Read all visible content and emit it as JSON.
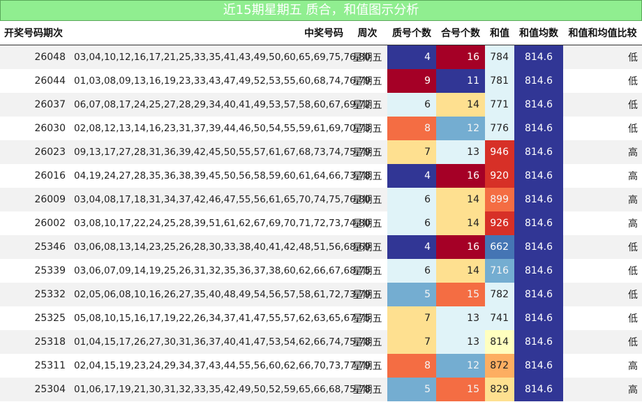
{
  "title": "近15期星期五 质合，和值图示分析",
  "headers": {
    "issue": "开奖号码期次",
    "numbers": "中奖号码",
    "weekday": "周次",
    "prime": "质号个数",
    "composite": "合号个数",
    "sum": "和值",
    "mean": "和值均数",
    "compare": "和值和均值比较"
  },
  "rows": [
    {
      "issue": "26048",
      "numbers": "03,04,10,12,16,17,21,25,33,35,41,43,49,50,60,65,69,75,76,80",
      "weekday": "星期五",
      "prime": "4",
      "prime_color": "#313695",
      "composite": "16",
      "composite_color": "#a50026",
      "sum": "784",
      "sum_color": "#e0f3f8",
      "mean": "814.6",
      "compare": "低"
    },
    {
      "issue": "26044",
      "numbers": "01,03,08,09,13,16,19,23,33,43,47,49,52,53,55,60,68,74,76,79",
      "weekday": "星期五",
      "prime": "9",
      "prime_color": "#a50026",
      "composite": "11",
      "composite_color": "#313695",
      "sum": "781",
      "sum_color": "#e0f3f8",
      "mean": "814.6",
      "compare": "低"
    },
    {
      "issue": "26037",
      "numbers": "06,07,08,17,24,25,27,28,29,34,40,41,49,53,57,58,60,67,69,72",
      "weekday": "星期五",
      "prime": "6",
      "prime_color": "#e0f3f8",
      "composite": "14",
      "composite_color": "#fee090",
      "sum": "771",
      "sum_color": "#e0f3f8",
      "mean": "814.6",
      "compare": "低"
    },
    {
      "issue": "26030",
      "numbers": "02,08,12,13,14,16,23,31,37,39,44,46,50,54,55,59,61,69,70,73",
      "weekday": "星期五",
      "prime": "8",
      "prime_color": "#f46d43",
      "composite": "12",
      "composite_color": "#74add1",
      "sum": "776",
      "sum_color": "#e0f3f8",
      "mean": "814.6",
      "compare": "低"
    },
    {
      "issue": "26023",
      "numbers": "09,13,17,27,28,31,36,39,42,45,50,55,57,61,67,68,73,74,75,79",
      "weekday": "星期五",
      "prime": "7",
      "prime_color": "#fee090",
      "composite": "13",
      "composite_color": "#e0f3f8",
      "sum": "946",
      "sum_color": "#d73027",
      "mean": "814.6",
      "compare": "高"
    },
    {
      "issue": "26016",
      "numbers": "04,19,24,27,28,35,36,38,39,45,50,56,58,59,60,61,64,66,73,78",
      "weekday": "星期五",
      "prime": "4",
      "prime_color": "#313695",
      "composite": "16",
      "composite_color": "#a50026",
      "sum": "920",
      "sum_color": "#d73027",
      "mean": "814.6",
      "compare": "高"
    },
    {
      "issue": "26009",
      "numbers": "03,04,08,17,18,31,34,37,42,46,47,55,56,61,65,70,74,75,76,80",
      "weekday": "星期五",
      "prime": "6",
      "prime_color": "#e0f3f8",
      "composite": "14",
      "composite_color": "#fee090",
      "sum": "899",
      "sum_color": "#f46d43",
      "mean": "814.6",
      "compare": "高"
    },
    {
      "issue": "26002",
      "numbers": "03,08,10,17,22,24,25,28,39,51,61,62,67,69,70,71,72,73,74,80",
      "weekday": "星期五",
      "prime": "6",
      "prime_color": "#e0f3f8",
      "composite": "14",
      "composite_color": "#fee090",
      "sum": "926",
      "sum_color": "#d73027",
      "mean": "814.6",
      "compare": "高"
    },
    {
      "issue": "25346",
      "numbers": "03,06,08,13,14,23,25,26,28,30,33,38,40,41,42,48,51,56,68,69",
      "weekday": "星期五",
      "prime": "4",
      "prime_color": "#313695",
      "composite": "16",
      "composite_color": "#a50026",
      "sum": "662",
      "sum_color": "#4575b4",
      "mean": "814.6",
      "compare": "低"
    },
    {
      "issue": "25339",
      "numbers": "03,06,07,09,14,19,25,26,31,32,35,36,37,38,60,62,66,67,68,75",
      "weekday": "星期五",
      "prime": "6",
      "prime_color": "#e0f3f8",
      "composite": "14",
      "composite_color": "#fee090",
      "sum": "716",
      "sum_color": "#74add1",
      "mean": "814.6",
      "compare": "低"
    },
    {
      "issue": "25332",
      "numbers": "02,05,06,08,10,16,26,27,35,40,48,49,54,56,57,58,61,72,73,79",
      "weekday": "星期五",
      "prime": "5",
      "prime_color": "#74add1",
      "composite": "15",
      "composite_color": "#f46d43",
      "sum": "782",
      "sum_color": "#e0f3f8",
      "mean": "814.6",
      "compare": "低"
    },
    {
      "issue": "25325",
      "numbers": "05,08,10,15,16,17,19,22,26,34,37,41,47,55,57,62,63,65,67,75",
      "weekday": "星期五",
      "prime": "7",
      "prime_color": "#fee090",
      "composite": "13",
      "composite_color": "#e0f3f8",
      "sum": "741",
      "sum_color": "#e0f3f8",
      "mean": "814.6",
      "compare": "低"
    },
    {
      "issue": "25318",
      "numbers": "01,04,15,17,26,27,30,31,36,37,40,41,47,53,54,62,66,74,75,78",
      "weekday": "星期五",
      "prime": "7",
      "prime_color": "#fee090",
      "composite": "13",
      "composite_color": "#e0f3f8",
      "sum": "814",
      "sum_color": "#ffffbf",
      "mean": "814.6",
      "compare": "低"
    },
    {
      "issue": "25311",
      "numbers": "02,04,15,19,23,24,29,34,37,43,44,55,56,60,62,66,70,73,77,79",
      "weekday": "星期五",
      "prime": "8",
      "prime_color": "#f46d43",
      "composite": "12",
      "composite_color": "#74add1",
      "sum": "872",
      "sum_color": "#fdae61",
      "mean": "814.6",
      "compare": "高"
    },
    {
      "issue": "25304",
      "numbers": "01,06,17,19,21,30,31,32,33,35,42,49,50,52,59,65,66,68,75,78",
      "weekday": "星期五",
      "prime": "5",
      "prime_color": "#74add1",
      "composite": "15",
      "composite_color": "#f46d43",
      "sum": "829",
      "sum_color": "#fee090",
      "mean": "814.6",
      "compare": "高"
    }
  ],
  "mean_color": "#313695"
}
